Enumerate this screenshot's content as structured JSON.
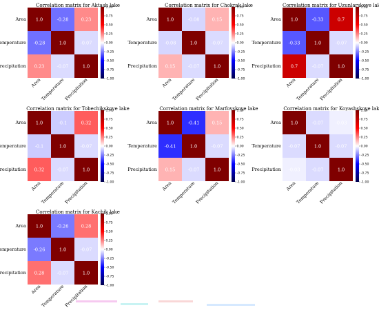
{
  "chart_data": [
    {
      "type": "heatmap",
      "title": "Correlation matrix for Aktash lake",
      "labels": [
        "Area",
        "Temperature",
        "Precipitation"
      ],
      "matrix": [
        [
          1.0,
          -0.28,
          0.23
        ],
        [
          -0.28,
          1.0,
          -0.07
        ],
        [
          0.23,
          -0.07,
          1.0
        ]
      ],
      "vmin": -1.0,
      "vmax": 1.0,
      "colormap": "seismic",
      "colorbar_ticks": [
        "1.00",
        "0.75",
        "0.50",
        "0.25",
        "0.00",
        "-0.25",
        "-0.50",
        "-0.75",
        "-1.00"
      ]
    },
    {
      "type": "heatmap",
      "title": "Correlation matrix for Chokrak lake",
      "labels": [
        "Area",
        "Temperature",
        "Precipitation"
      ],
      "matrix": [
        [
          1.0,
          -0.08,
          0.15
        ],
        [
          -0.08,
          1.0,
          -0.07
        ],
        [
          0.15,
          -0.07,
          1.0
        ]
      ],
      "vmin": -1.0,
      "vmax": 1.0,
      "colormap": "seismic",
      "colorbar_ticks": [
        "1.00",
        "0.75",
        "0.50",
        "0.25",
        "0.00",
        "-0.25",
        "-0.50",
        "-0.75",
        "-1.00"
      ]
    },
    {
      "type": "heatmap",
      "title": "Correlation matrix for Uzunlarskoye lake",
      "labels": [
        "Area",
        "Temperature",
        "Precipitation"
      ],
      "matrix": [
        [
          1.0,
          -0.33,
          0.7
        ],
        [
          -0.33,
          1.0,
          -0.07
        ],
        [
          0.7,
          -0.07,
          1.0
        ]
      ],
      "vmin": -1.0,
      "vmax": 1.0,
      "colormap": "seismic",
      "colorbar_ticks": [
        "1.00",
        "0.75",
        "0.50",
        "0.25",
        "0.00",
        "-0.25",
        "-0.50",
        "-0.75",
        "-1.00"
      ]
    },
    {
      "type": "heatmap",
      "title": "Correlation matrix for Tobechikskoye lake",
      "labels": [
        "Area",
        "Temperature",
        "Precipitation"
      ],
      "matrix": [
        [
          1.0,
          -0.1,
          0.32
        ],
        [
          -0.1,
          1.0,
          -0.07
        ],
        [
          0.32,
          -0.07,
          1.0
        ]
      ],
      "vmin": -1.0,
      "vmax": 1.0,
      "colormap": "seismic",
      "colorbar_ticks": [
        "1.00",
        "0.75",
        "0.50",
        "0.25",
        "0.00",
        "-0.25",
        "-0.50",
        "-0.75",
        "-1.00"
      ]
    },
    {
      "type": "heatmap",
      "title": "Correlation matrix for Marfovskoye lake",
      "labels": [
        "Area",
        "Temperature",
        "Precipitation"
      ],
      "matrix": [
        [
          1.0,
          -0.41,
          0.15
        ],
        [
          -0.41,
          1.0,
          -0.07
        ],
        [
          0.15,
          -0.07,
          1.0
        ]
      ],
      "vmin": -1.0,
      "vmax": 1.0,
      "colormap": "seismic",
      "colorbar_ticks": [
        "1.00",
        "0.75",
        "0.50",
        "0.25",
        "0.00",
        "-0.25",
        "-0.50",
        "-0.75",
        "-1.00"
      ]
    },
    {
      "type": "heatmap",
      "title": "Correlation matrix for Koyashskoye lake",
      "labels": [
        "Area",
        "Temperature",
        "Precipitation"
      ],
      "matrix": [
        [
          1.0,
          -0.07,
          -0.03
        ],
        [
          -0.07,
          1.0,
          -0.07
        ],
        [
          -0.03,
          -0.07,
          1.0
        ]
      ],
      "vmin": -1.0,
      "vmax": 1.0,
      "colormap": "seismic",
      "colorbar_ticks": [
        "1.00",
        "0.75",
        "0.50",
        "0.25",
        "0.00",
        "-0.25",
        "-0.50",
        "-0.75",
        "-1.00"
      ]
    },
    {
      "type": "heatmap",
      "title": "Correlation matrix for Kachik lake",
      "labels": [
        "Area",
        "Temperature",
        "Precipitation"
      ],
      "matrix": [
        [
          1.0,
          -0.26,
          0.28
        ],
        [
          -0.26,
          1.0,
          -0.07
        ],
        [
          0.28,
          -0.07,
          1.0
        ]
      ],
      "vmin": -1.0,
      "vmax": 1.0,
      "colormap": "seismic",
      "colorbar_ticks": [
        "1.00",
        "0.75",
        "0.50",
        "0.25",
        "0.00",
        "-0.25",
        "-0.50",
        "-0.75",
        "-1.00"
      ]
    }
  ],
  "style": {
    "positive_color": "#7f0000",
    "negative_color": "#00007f",
    "zero_color": "#ffffff",
    "text_on_cell": "#ffffff",
    "label_color": "#000000"
  }
}
